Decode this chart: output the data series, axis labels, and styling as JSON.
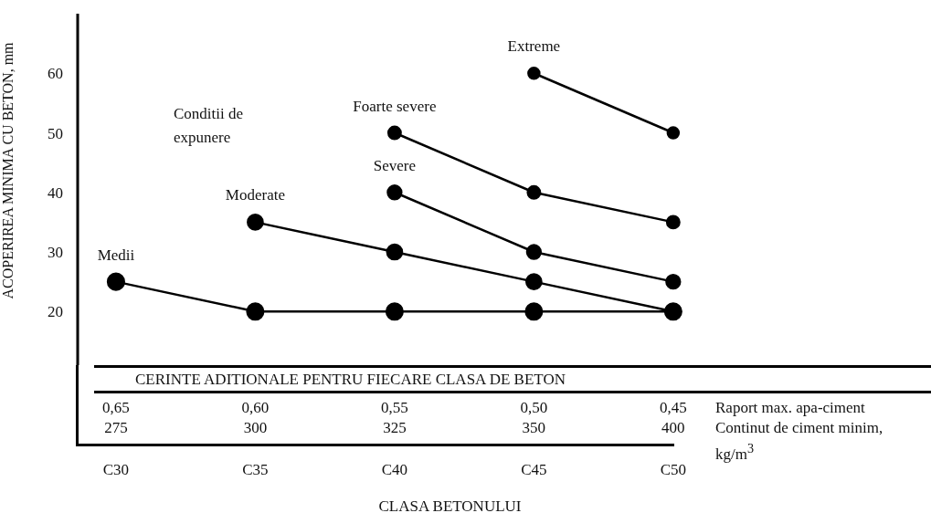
{
  "chart_data": {
    "type": "line",
    "ylabel": "ACOPERIREA MINIMA CU BETON, mm",
    "xlabel": "CLASA BETONULUI",
    "categories": [
      "C30",
      "C35",
      "C40",
      "C45",
      "C50"
    ],
    "series": [
      {
        "name": "Medii",
        "color": "#000000",
        "values": [
          25,
          20,
          20,
          20,
          20
        ]
      },
      {
        "name": "Moderate",
        "color": "#000000",
        "values": [
          null,
          35,
          30,
          25,
          20
        ]
      },
      {
        "name": "Severe",
        "color": "#000000",
        "values": [
          null,
          null,
          40,
          30,
          25
        ]
      },
      {
        "name": "Foarte severe",
        "color": "#000000",
        "values": [
          null,
          null,
          50,
          40,
          35
        ]
      },
      {
        "name": "Extreme",
        "color": "#000000",
        "values": [
          null,
          null,
          null,
          60,
          50
        ]
      }
    ],
    "ylim": [
      11,
      70
    ],
    "yticks": [
      20,
      30,
      40,
      50,
      60
    ],
    "grid": false,
    "marker": "circle",
    "line_style": "solid",
    "annotations": [
      "Conditii de expunere",
      "CERINTE ADITIONALE PENTRU FIECARE CLASA DE BETON",
      "0,65",
      "0,60",
      "0,55",
      "0,50",
      "0,45",
      "Raport max. apa-ciment",
      "275",
      "300",
      "325",
      "350",
      "400",
      "Continut de ciment minim, kg/m$^{3}$"
    ]
  }
}
